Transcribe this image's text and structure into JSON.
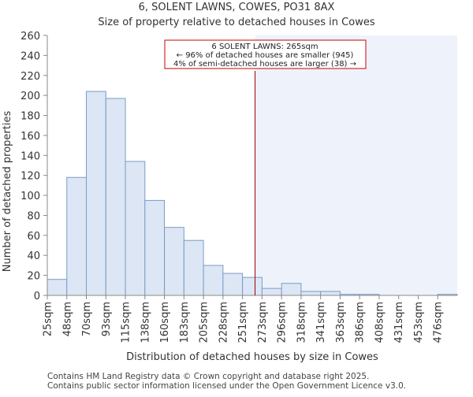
{
  "chart_data": {
    "type": "bar",
    "title": "6, SOLENT LAWNS, COWES, PO31 8AX",
    "subtitle": "Size of property relative to detached houses in Cowes",
    "xlabel": "Distribution of detached houses by size in Cowes",
    "ylabel": "Number of detached properties",
    "ylim": [
      0,
      260
    ],
    "yticks": [
      0,
      20,
      40,
      60,
      80,
      100,
      120,
      140,
      160,
      180,
      200,
      220,
      240,
      260
    ],
    "categories": [
      "25sqm",
      "48sqm",
      "70sqm",
      "93sqm",
      "115sqm",
      "138sqm",
      "160sqm",
      "183sqm",
      "205sqm",
      "228sqm",
      "251sqm",
      "273sqm",
      "296sqm",
      "318sqm",
      "341sqm",
      "363sqm",
      "386sqm",
      "408sqm",
      "431sqm",
      "453sqm",
      "476sqm"
    ],
    "values": [
      16,
      118,
      204,
      197,
      134,
      95,
      68,
      55,
      30,
      22,
      18,
      7,
      12,
      4,
      4,
      1,
      1,
      0,
      0,
      0,
      1
    ],
    "marker_value": 265,
    "highlight_from": 265,
    "grid": false,
    "colors": {
      "bar_fill": "#dce6f5",
      "bar_stroke": "#7a9cc6",
      "highlight_fill": "#eef2fb",
      "marker": "#990000",
      "annotation_border": "#cc0000",
      "axis": "#888888"
    },
    "annotation": {
      "lines": [
        "6 SOLENT LAWNS: 265sqm",
        "← 96% of detached houses are smaller (945)",
        "4% of semi-detached houses are larger (38) →"
      ]
    }
  },
  "footer": {
    "line1": "Contains HM Land Registry data © Crown copyright and database right 2025.",
    "line2": "Contains public sector information licensed under the Open Government Licence v3.0."
  }
}
